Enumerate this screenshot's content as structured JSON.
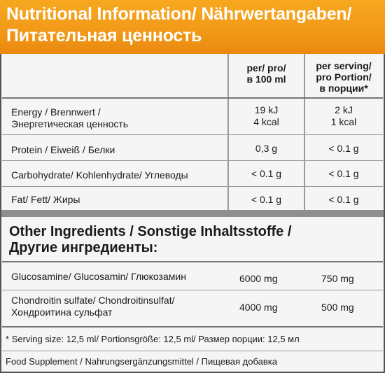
{
  "header": {
    "line1": "Nutritional Information/ Nährwertangaben/",
    "line2": "Питательная ценность"
  },
  "columns": {
    "per100_l1": "per/ pro/",
    "per100_l2": "в 100 ml",
    "serving_l1": "per serving/",
    "serving_l2": "pro Portion/",
    "serving_l3": "в порции*"
  },
  "nutrients": [
    {
      "label_l1": "Energy / Brennwert /",
      "label_l2": "Энергетическая ценность",
      "per100_l1": "19 kJ",
      "per100_l2": "4 kcal",
      "serving_l1": "2 kJ",
      "serving_l2": "1 kcal"
    },
    {
      "label_l1": "Protein / Eiweiß / Белки",
      "per100_l1": "0,3 g",
      "serving_l1": "< 0.1 g"
    },
    {
      "label_l1": "Carbohydrate/ Kohlenhydrate/ Углеводы",
      "per100_l1": "< 0.1 g",
      "serving_l1": "< 0.1 g"
    },
    {
      "label_l1": "Fat/ Fett/ Жиры",
      "per100_l1": "< 0.1 g",
      "serving_l1": "< 0.1 g"
    }
  ],
  "other": {
    "title_l1": "Other Ingredients / Sonstige Inhaltsstoffe /",
    "title_l2": "Другие ингредиенты:",
    "items": [
      {
        "label_l1": "Glucosamine/ Glucosamin/ Глюкозамин",
        "per100": "6000 mg",
        "serving": "750 mg"
      },
      {
        "label_l1": "Chondroitin sulfate/ Chondroitinsulfat/",
        "label_l2": "Хондроитина сульфат",
        "per100": "4000 mg",
        "serving": "500 mg"
      }
    ]
  },
  "footnotes": {
    "serving_size": "* Serving size: 12,5 ml/ Portionsgröße: 12,5 ml/ Размер порции: 12,5 мл",
    "supplement": "Food Supplement / Nahrungsergänzungsmittel / Пищевая добавка"
  }
}
